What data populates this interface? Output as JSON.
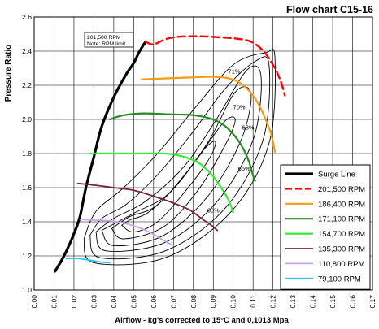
{
  "chart_data": {
    "type": "line",
    "title": "Flow chart C15-16",
    "xlabel": "Airflow - kg's corrected to 15°C and 0,1013 Mpa",
    "ylabel": "Pressure Ratio",
    "xlim": [
      0.0,
      0.17
    ],
    "ylim": [
      1.0,
      2.6
    ],
    "x_ticks": [
      "0.00",
      "0.01",
      "0.02",
      "0.03",
      "0.04",
      "0.05",
      "0.06",
      "0.07",
      "0.08",
      "0.09",
      "0.10",
      "0.11",
      "0.12",
      "0.13",
      "0.14",
      "0.15",
      "0.16",
      "0.17"
    ],
    "y_ticks": [
      "1.0",
      "1.2",
      "1.4",
      "1.6",
      "1.8",
      "2.0",
      "2.2",
      "2.4",
      "2.6"
    ],
    "grid": true,
    "legend_position": "right",
    "annotation": [
      "201,500 RPM",
      "Note: RPM limit"
    ],
    "efficiency_labels": [
      {
        "text": "71%",
        "x": 0.1005,
        "y": 2.27
      },
      {
        "text": "70%",
        "x": 0.103,
        "y": 2.06
      },
      {
        "text": "68%",
        "x": 0.1075,
        "y": 1.94
      },
      {
        "text": "65%",
        "x": 0.1055,
        "y": 1.7
      },
      {
        "text": "60%",
        "x": 0.09,
        "y": 1.455
      }
    ],
    "efficiency_islands": [
      {
        "points": [
          [
            0.044,
            1.38
          ],
          [
            0.05,
            1.34
          ],
          [
            0.062,
            1.4
          ],
          [
            0.076,
            1.58
          ],
          [
            0.088,
            1.77
          ],
          [
            0.091,
            1.87
          ],
          [
            0.085,
            1.82
          ],
          [
            0.072,
            1.62
          ],
          [
            0.058,
            1.46
          ],
          [
            0.048,
            1.41
          ],
          [
            0.044,
            1.38
          ]
        ]
      },
      {
        "points": [
          [
            0.039,
            1.36
          ],
          [
            0.045,
            1.3
          ],
          [
            0.065,
            1.37
          ],
          [
            0.082,
            1.58
          ],
          [
            0.096,
            1.85
          ],
          [
            0.101,
            2.0
          ],
          [
            0.095,
            1.98
          ],
          [
            0.08,
            1.74
          ],
          [
            0.062,
            1.5
          ],
          [
            0.048,
            1.43
          ],
          [
            0.039,
            1.36
          ]
        ]
      },
      {
        "points": [
          [
            0.034,
            1.35
          ],
          [
            0.04,
            1.26
          ],
          [
            0.065,
            1.32
          ],
          [
            0.088,
            1.56
          ],
          [
            0.104,
            1.88
          ],
          [
            0.109,
            2.15
          ],
          [
            0.101,
            2.16
          ],
          [
            0.087,
            1.86
          ],
          [
            0.068,
            1.57
          ],
          [
            0.05,
            1.45
          ],
          [
            0.034,
            1.35
          ]
        ]
      },
      {
        "points": [
          [
            0.031,
            1.34
          ],
          [
            0.036,
            1.23
          ],
          [
            0.066,
            1.28
          ],
          [
            0.092,
            1.52
          ],
          [
            0.11,
            1.88
          ],
          [
            0.114,
            2.25
          ],
          [
            0.107,
            2.29
          ],
          [
            0.091,
            1.99
          ],
          [
            0.075,
            1.72
          ],
          [
            0.056,
            1.52
          ],
          [
            0.04,
            1.42
          ],
          [
            0.031,
            1.34
          ]
        ]
      },
      {
        "points": [
          [
            0.028,
            1.32
          ],
          [
            0.033,
            1.19
          ],
          [
            0.066,
            1.23
          ],
          [
            0.096,
            1.48
          ],
          [
            0.115,
            1.88
          ],
          [
            0.118,
            2.32
          ],
          [
            0.111,
            2.34
          ],
          [
            0.096,
            2.18
          ],
          [
            0.078,
            1.9
          ],
          [
            0.06,
            1.65
          ],
          [
            0.046,
            1.5
          ],
          [
            0.034,
            1.42
          ],
          [
            0.028,
            1.32
          ]
        ]
      },
      {
        "points": [
          [
            0.025,
            1.3
          ],
          [
            0.03,
            1.16
          ],
          [
            0.066,
            1.19
          ],
          [
            0.099,
            1.46
          ],
          [
            0.118,
            1.86
          ],
          [
            0.121,
            2.36
          ],
          [
            0.116,
            2.39
          ],
          [
            0.1,
            2.32
          ],
          [
            0.081,
            2.07
          ],
          [
            0.062,
            1.8
          ],
          [
            0.045,
            1.6
          ],
          [
            0.031,
            1.46
          ],
          [
            0.025,
            1.3
          ]
        ]
      }
    ],
    "series": [
      {
        "name": "Surge Line",
        "color": "#000000",
        "dash": "solid",
        "width": 3.2,
        "points": [
          [
            0.0105,
            1.11
          ],
          [
            0.015,
            1.2
          ],
          [
            0.02,
            1.33
          ],
          [
            0.023,
            1.43
          ],
          [
            0.026,
            1.6
          ],
          [
            0.03,
            1.78
          ],
          [
            0.034,
            1.96
          ],
          [
            0.04,
            2.13
          ],
          [
            0.046,
            2.26
          ],
          [
            0.05,
            2.33
          ],
          [
            0.053,
            2.4
          ],
          [
            0.056,
            2.455
          ]
        ]
      },
      {
        "name": "201,500 RPM",
        "color": "#ff0000",
        "dash": "dashed",
        "width": 2.4,
        "points": [
          [
            0.056,
            2.455
          ],
          [
            0.06,
            2.44
          ],
          [
            0.066,
            2.47
          ],
          [
            0.073,
            2.485
          ],
          [
            0.083,
            2.487
          ],
          [
            0.095,
            2.48
          ],
          [
            0.104,
            2.47
          ],
          [
            0.11,
            2.45
          ],
          [
            0.116,
            2.39
          ],
          [
            0.121,
            2.3
          ],
          [
            0.124,
            2.22
          ],
          [
            0.126,
            2.14
          ]
        ]
      },
      {
        "name": "186,400 RPM",
        "color": "#f39c12",
        "dash": "solid",
        "width": 2.2,
        "points": [
          [
            0.054,
            2.235
          ],
          [
            0.065,
            2.24
          ],
          [
            0.077,
            2.245
          ],
          [
            0.09,
            2.25
          ],
          [
            0.098,
            2.24
          ],
          [
            0.104,
            2.21
          ],
          [
            0.11,
            2.14
          ],
          [
            0.114,
            2.06
          ],
          [
            0.117,
            1.98
          ],
          [
            0.119,
            1.92
          ],
          [
            0.12,
            1.87
          ],
          [
            0.121,
            1.81
          ]
        ]
      },
      {
        "name": "171,100 RPM",
        "color": "#228b22",
        "dash": "solid",
        "width": 2.2,
        "points": [
          [
            0.038,
            2.0
          ],
          [
            0.045,
            2.025
          ],
          [
            0.055,
            2.035
          ],
          [
            0.068,
            2.03
          ],
          [
            0.08,
            2.025
          ],
          [
            0.09,
            2.0
          ],
          [
            0.096,
            1.96
          ],
          [
            0.101,
            1.9
          ],
          [
            0.105,
            1.83
          ],
          [
            0.108,
            1.75
          ],
          [
            0.11,
            1.67
          ],
          [
            0.111,
            1.64
          ]
        ]
      },
      {
        "name": "154,700 RPM",
        "color": "#33ee33",
        "dash": "solid",
        "width": 2.2,
        "points": [
          [
            0.028,
            1.8
          ],
          [
            0.04,
            1.8
          ],
          [
            0.055,
            1.8
          ],
          [
            0.066,
            1.8
          ],
          [
            0.074,
            1.785
          ],
          [
            0.082,
            1.75
          ],
          [
            0.089,
            1.68
          ],
          [
            0.094,
            1.6
          ],
          [
            0.098,
            1.52
          ],
          [
            0.1,
            1.455
          ]
        ]
      },
      {
        "name": "135,300 RPM",
        "color": "#7a1f3d",
        "dash": "solid",
        "width": 1.8,
        "points": [
          [
            0.022,
            1.625
          ],
          [
            0.03,
            1.615
          ],
          [
            0.04,
            1.6
          ],
          [
            0.05,
            1.585
          ],
          [
            0.06,
            1.55
          ],
          [
            0.07,
            1.51
          ],
          [
            0.078,
            1.47
          ],
          [
            0.084,
            1.42
          ],
          [
            0.089,
            1.38
          ],
          [
            0.092,
            1.35
          ]
        ]
      },
      {
        "name": "110,800 RPM",
        "color": "#c8a2f0",
        "dash": "solid",
        "width": 1.8,
        "points": [
          [
            0.023,
            1.415
          ],
          [
            0.03,
            1.41
          ],
          [
            0.038,
            1.405
          ],
          [
            0.046,
            1.39
          ],
          [
            0.054,
            1.36
          ],
          [
            0.061,
            1.32
          ],
          [
            0.066,
            1.285
          ],
          [
            0.07,
            1.26
          ]
        ]
      },
      {
        "name": "79,100 RPM",
        "color": "#1ec8ee",
        "dash": "solid",
        "width": 1.8,
        "points": [
          [
            0.016,
            1.185
          ],
          [
            0.022,
            1.185
          ],
          [
            0.028,
            1.175
          ],
          [
            0.033,
            1.165
          ],
          [
            0.038,
            1.16
          ]
        ]
      }
    ],
    "legend_order": [
      "Surge Line",
      "201,500 RPM",
      "186,400 RPM",
      "171,100 RPM",
      "154,700 RPM",
      "135,300 RPM",
      "110,800 RPM",
      "79,100 RPM"
    ]
  }
}
